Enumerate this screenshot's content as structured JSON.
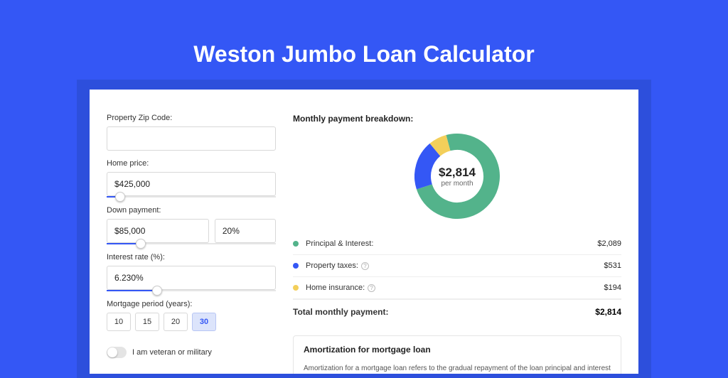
{
  "page": {
    "title": "Weston Jumbo Loan Calculator",
    "bg_color": "#3457f5",
    "shadow_color": "#2d4fdc",
    "card_bg": "#ffffff"
  },
  "form": {
    "zip": {
      "label": "Property Zip Code:",
      "value": ""
    },
    "home_price": {
      "label": "Home price:",
      "value": "$425,000",
      "slider_pct": 8
    },
    "down_payment": {
      "label": "Down payment:",
      "amount": "$85,000",
      "pct": "20%",
      "slider_pct": 20
    },
    "interest_rate": {
      "label": "Interest rate (%):",
      "value": "6.230%",
      "slider_pct": 30
    },
    "mortgage_period": {
      "label": "Mortgage period (years):",
      "options": [
        "10",
        "15",
        "20",
        "30"
      ],
      "selected": "30"
    },
    "veteran": {
      "label": "I am veteran or military",
      "checked": false
    }
  },
  "breakdown": {
    "title": "Monthly payment breakdown:",
    "center_amount": "$2,814",
    "center_sub": "per month",
    "donut": {
      "type": "donut",
      "size": 120,
      "inner_radius": 37,
      "outer_radius": 60,
      "background_color": "#ffffff",
      "slices": [
        {
          "label": "Principal & Interest",
          "value": 2089,
          "pct": 74.2,
          "color": "#53b38b"
        },
        {
          "label": "Property taxes",
          "value": 531,
          "pct": 18.9,
          "color": "#3457f5"
        },
        {
          "label": "Home insurance",
          "value": 194,
          "pct": 6.9,
          "color": "#f3cf5a"
        }
      ]
    },
    "rows": [
      {
        "label": "Principal & Interest:",
        "value": "$2,089",
        "color": "#53b38b",
        "info": false
      },
      {
        "label": "Property taxes:",
        "value": "$531",
        "color": "#3457f5",
        "info": true
      },
      {
        "label": "Home insurance:",
        "value": "$194",
        "color": "#f3cf5a",
        "info": true
      }
    ],
    "total": {
      "label": "Total monthly payment:",
      "value": "$2,814"
    }
  },
  "amortization": {
    "title": "Amortization for mortgage loan",
    "text": "Amortization for a mortgage loan refers to the gradual repayment of the loan principal and interest over a specified"
  }
}
